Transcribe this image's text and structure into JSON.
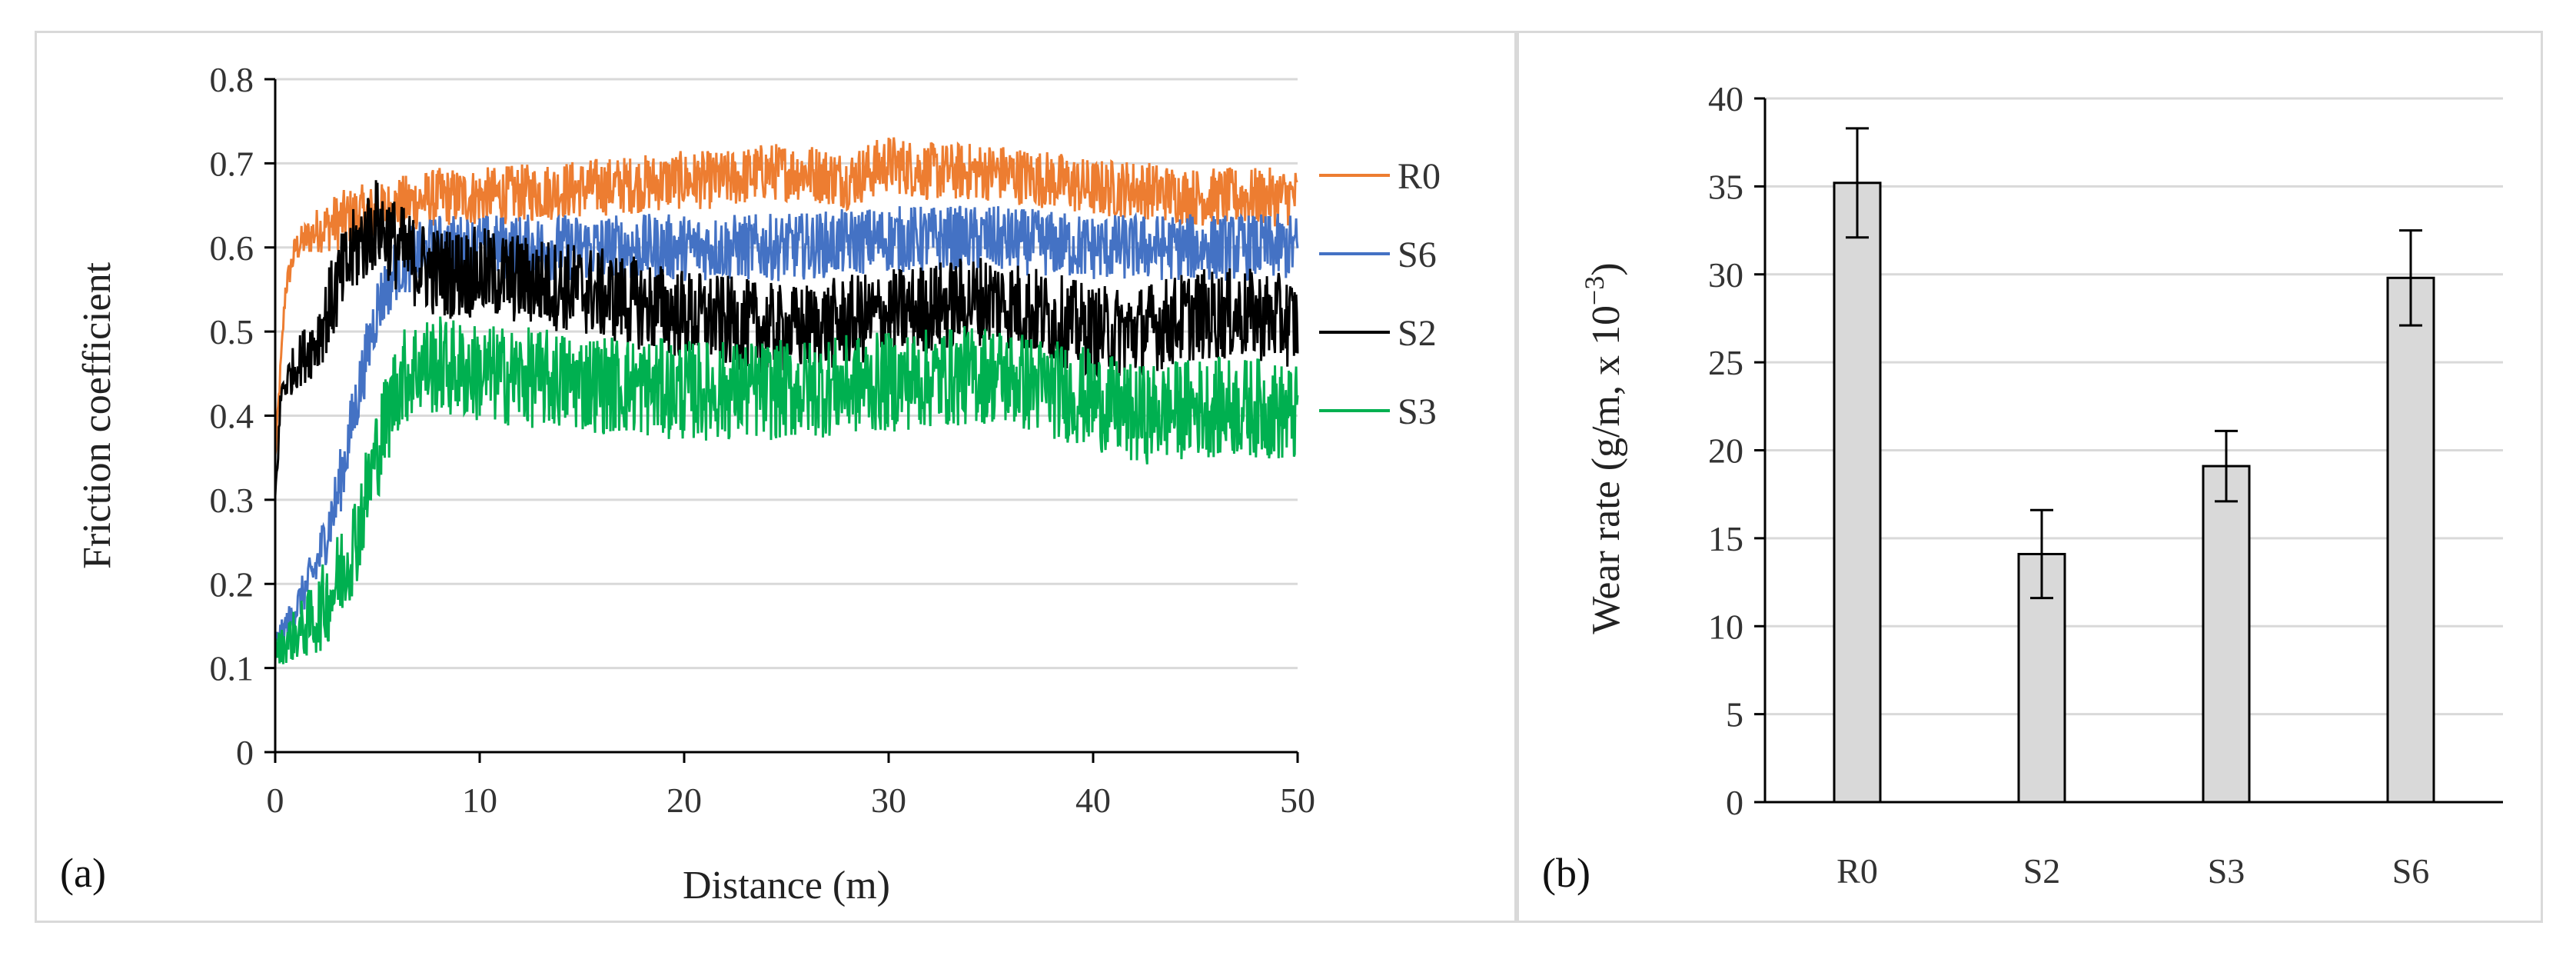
{
  "chart_data": [
    {
      "type": "line",
      "panel_label": "(a)",
      "xlabel": "Distance (m)",
      "ylabel": "Friction coefficient",
      "xlim": [
        0,
        50
      ],
      "ylim": [
        0,
        0.8
      ],
      "xticks": [
        "0",
        "10",
        "20",
        "30",
        "40",
        "50"
      ],
      "yticks": [
        "0",
        "0.1",
        "0.2",
        "0.3",
        "0.4",
        "0.5",
        "0.6",
        "0.7",
        "0.8"
      ],
      "grid": "horizontal",
      "legend_position": "right",
      "series": [
        {
          "name": "R0",
          "color": "#ed7d31",
          "x": [
            0,
            0.5,
            1,
            2,
            3,
            4,
            5,
            6,
            8,
            10,
            15,
            20,
            22,
            24,
            26,
            28,
            30,
            32,
            35,
            38,
            40,
            42,
            45,
            48,
            50
          ],
          "y": [
            0.35,
            0.55,
            0.6,
            0.62,
            0.63,
            0.64,
            0.64,
            0.65,
            0.66,
            0.66,
            0.67,
            0.68,
            0.68,
            0.69,
            0.69,
            0.68,
            0.7,
            0.69,
            0.69,
            0.68,
            0.67,
            0.67,
            0.66,
            0.66,
            0.66
          ]
        },
        {
          "name": "S6",
          "color": "#4472c4",
          "x": [
            0,
            0.5,
            1,
            2,
            3,
            4,
            5,
            6,
            8,
            10,
            15,
            20,
            25,
            30,
            35,
            40,
            45,
            50
          ],
          "y": [
            0.13,
            0.15,
            0.17,
            0.22,
            0.3,
            0.42,
            0.53,
            0.58,
            0.6,
            0.6,
            0.6,
            0.6,
            0.6,
            0.61,
            0.61,
            0.6,
            0.6,
            0.6
          ]
        },
        {
          "name": "S2",
          "color": "#000000",
          "x": [
            0,
            0.3,
            1,
            2,
            3,
            4,
            5,
            6,
            7,
            8,
            10,
            15,
            20,
            25,
            30,
            35,
            40,
            42,
            45,
            48,
            50
          ],
          "y": [
            0.3,
            0.43,
            0.46,
            0.49,
            0.55,
            0.6,
            0.63,
            0.6,
            0.58,
            0.57,
            0.57,
            0.55,
            0.52,
            0.5,
            0.52,
            0.54,
            0.5,
            0.5,
            0.52,
            0.52,
            0.51
          ]
        },
        {
          "name": "S3",
          "color": "#00b050",
          "x": [
            0,
            0.5,
            1,
            2,
            3,
            4,
            5,
            6,
            7,
            8,
            10,
            15,
            20,
            25,
            30,
            35,
            40,
            42,
            45,
            48,
            50
          ],
          "y": [
            0.12,
            0.13,
            0.14,
            0.16,
            0.2,
            0.26,
            0.36,
            0.44,
            0.46,
            0.46,
            0.45,
            0.44,
            0.43,
            0.43,
            0.44,
            0.45,
            0.42,
            0.4,
            0.41,
            0.41,
            0.4
          ]
        }
      ]
    },
    {
      "type": "bar",
      "panel_label": "(b)",
      "ylabel_main": "Wear rate (g/m, x 10",
      "ylabel_exp": "−3",
      "ylabel_close": ")",
      "categories": [
        "R0",
        "S2",
        "S3",
        "S6"
      ],
      "values": [
        35.2,
        14.1,
        19.1,
        29.8
      ],
      "errors": [
        3.1,
        2.5,
        2.0,
        2.7
      ],
      "ylim": [
        0,
        40
      ],
      "yticks": [
        "0",
        "5",
        "10",
        "15",
        "20",
        "25",
        "30",
        "35",
        "40"
      ],
      "grid": "horizontal",
      "bar_color": "#d9d9d9",
      "bar_edge": "#000000"
    }
  ]
}
